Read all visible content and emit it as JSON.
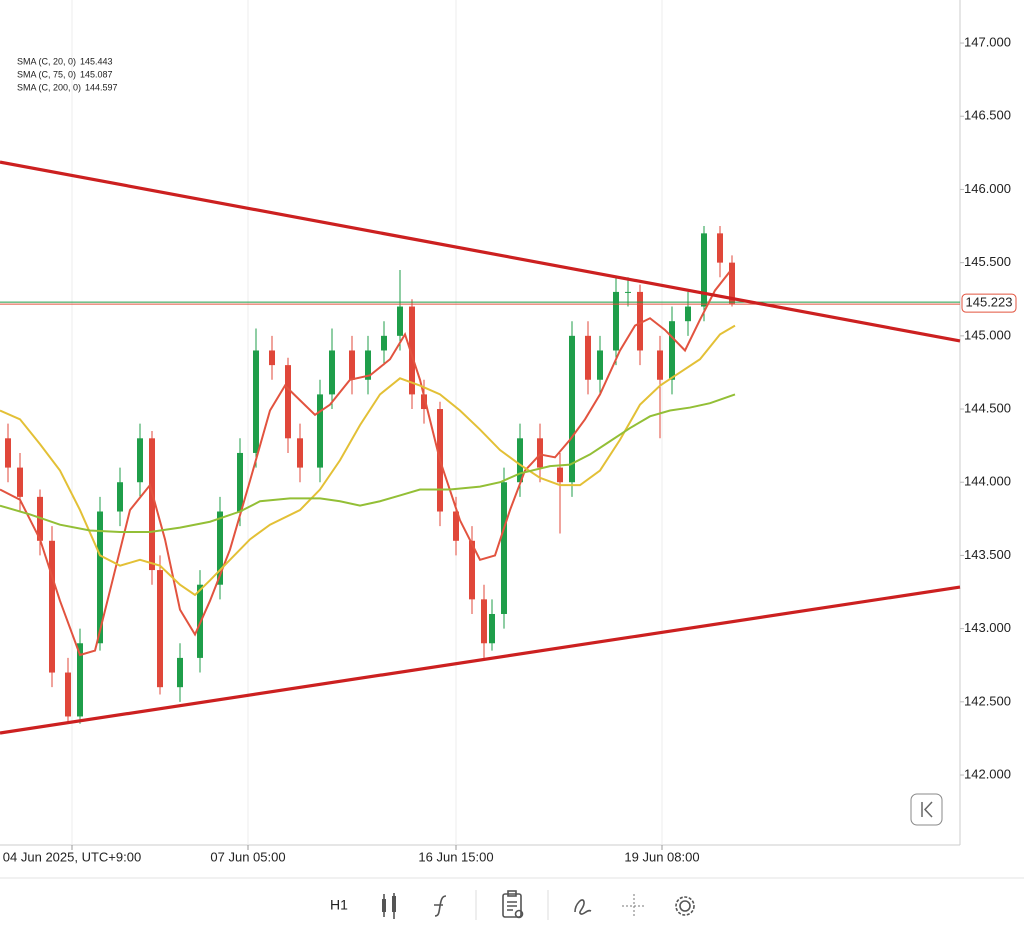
{
  "chart_data": {
    "type": "candlestick",
    "ylim": [
      141.522,
      147.294
    ],
    "yticks": [
      {
        "value": 147,
        "label": "147.000"
      },
      {
        "value": 146.5,
        "label": "146.500"
      },
      {
        "value": 146,
        "label": "146.000"
      },
      {
        "value": 145.5,
        "label": "145.500"
      },
      {
        "value": 145,
        "label": "145.000"
      },
      {
        "value": 144.5,
        "label": "144.500"
      },
      {
        "value": 144,
        "label": "144.000"
      },
      {
        "value": 143.5,
        "label": "143.500"
      },
      {
        "value": 143,
        "label": "143.000"
      },
      {
        "value": 142.5,
        "label": "142.500"
      },
      {
        "value": 142,
        "label": "142.000"
      }
    ],
    "xlim": [
      0,
      240
    ],
    "xticks": [
      {
        "value": 18,
        "label": "04 Jun 2025, UTC+9:00"
      },
      {
        "value": 62,
        "label": "07 Jun 05:00"
      },
      {
        "value": 114,
        "label": "16 Jun 15:00"
      },
      {
        "value": 165.5,
        "label": "19 Jun 08:00"
      }
    ],
    "candles": {
      "up_color": "#1f9e4a",
      "down_color": "#e0473a",
      "x": [
        2,
        5,
        10,
        13,
        17,
        20,
        25,
        30,
        35,
        38,
        40,
        45,
        50,
        55,
        60,
        64,
        68,
        72,
        75,
        80,
        83,
        88,
        92,
        96,
        100,
        103,
        106,
        110,
        114,
        118,
        121,
        123,
        126,
        130,
        135,
        140,
        143,
        147,
        150,
        154,
        157,
        160,
        165,
        168,
        172,
        176,
        180,
        183
      ],
      "open": [
        144.3,
        144.1,
        143.9,
        143.6,
        142.7,
        142.4,
        142.9,
        143.8,
        144.0,
        144.3,
        143.4,
        142.6,
        142.8,
        143.3,
        143.8,
        144.2,
        144.9,
        144.8,
        144.3,
        144.1,
        144.6,
        144.9,
        144.7,
        144.9,
        145.0,
        145.2,
        144.6,
        144.5,
        143.8,
        143.6,
        143.2,
        142.9,
        143.1,
        144.0,
        144.3,
        144.1,
        144.0,
        145.0,
        144.7,
        144.9,
        145.3,
        145.3,
        144.9,
        144.7,
        145.1,
        145.2,
        145.7,
        145.5
      ],
      "high": [
        144.4,
        144.2,
        143.95,
        143.7,
        142.8,
        143.0,
        143.9,
        144.1,
        144.4,
        144.35,
        143.5,
        142.9,
        143.4,
        143.9,
        144.3,
        145.05,
        145.0,
        144.85,
        144.4,
        144.7,
        145.05,
        145.0,
        145.0,
        145.1,
        145.45,
        145.25,
        144.7,
        144.55,
        143.9,
        143.7,
        143.3,
        143.2,
        144.1,
        144.4,
        144.4,
        144.2,
        145.1,
        145.1,
        145.0,
        145.4,
        145.4,
        145.35,
        145.0,
        145.2,
        145.3,
        145.75,
        145.75,
        145.55
      ],
      "low": [
        144.0,
        143.8,
        143.5,
        142.6,
        142.35,
        142.35,
        142.85,
        143.7,
        143.9,
        143.3,
        142.55,
        142.5,
        142.7,
        143.2,
        143.7,
        144.1,
        144.7,
        144.2,
        144.0,
        144.0,
        144.5,
        144.6,
        144.6,
        144.8,
        144.9,
        144.5,
        144.4,
        143.7,
        143.5,
        143.1,
        142.8,
        142.85,
        143.0,
        143.9,
        144.0,
        143.65,
        143.9,
        144.6,
        144.6,
        144.8,
        145.2,
        144.8,
        144.3,
        144.6,
        145.0,
        145.1,
        145.4,
        145.2
      ],
      "close": [
        144.1,
        143.9,
        143.6,
        142.7,
        142.4,
        142.9,
        143.8,
        144.0,
        144.3,
        143.4,
        142.6,
        142.8,
        143.3,
        143.8,
        144.2,
        144.9,
        144.8,
        144.3,
        144.1,
        144.6,
        144.9,
        144.7,
        144.9,
        145.0,
        145.2,
        144.6,
        144.5,
        143.8,
        143.6,
        143.2,
        142.9,
        143.1,
        144.0,
        144.3,
        144.1,
        144.0,
        145.0,
        144.7,
        144.9,
        145.3,
        145.3,
        144.9,
        144.7,
        145.1,
        145.2,
        145.7,
        145.5,
        145.22
      ]
    },
    "series": [
      {
        "name": "SMA (C, 20, 0)",
        "last_value": 145.443,
        "color": "#e2533f",
        "x": [
          0,
          5,
          10,
          15,
          20,
          23.75,
          27.5,
          32.5,
          37.5,
          41.25,
          45,
          48.75,
          52.5,
          57.5,
          62.5,
          67.5,
          71.25,
          75,
          78.75,
          82.5,
          87.5,
          92.5,
          97.5,
          101.25,
          105,
          110,
          115,
          120,
          123.75,
          127.5,
          131.25,
          135,
          138.75,
          142.5,
          146.25,
          150,
          155,
          158.75,
          162.5,
          166.25,
          171.25,
          175,
          178.75,
          182.5
        ],
        "values": [
          143.95,
          143.88,
          143.61,
          143.19,
          142.82,
          142.85,
          143.26,
          143.81,
          143.98,
          143.61,
          143.13,
          142.96,
          143.19,
          143.54,
          144.01,
          144.49,
          144.66,
          144.56,
          144.46,
          144.53,
          144.7,
          144.73,
          144.84,
          145.01,
          144.7,
          144.15,
          143.74,
          143.47,
          143.5,
          143.81,
          144.08,
          144.19,
          144.17,
          144.29,
          144.43,
          144.6,
          144.9,
          145.07,
          145.12,
          145.04,
          144.9,
          145.11,
          145.31,
          145.44
        ]
      },
      {
        "name": "SMA (C, 75, 0)",
        "last_value": 145.087,
        "color": "#e3c036",
        "x": [
          0,
          5,
          10,
          15,
          20,
          25,
          30,
          35,
          40,
          45,
          48.75,
          52.5,
          57.5,
          62.5,
          67.5,
          75,
          80,
          85,
          90,
          95,
          100,
          105,
          110,
          115,
          120,
          125,
          130,
          135,
          140,
          145,
          150,
          155,
          160,
          165,
          170,
          175,
          180,
          183.75
        ],
        "values": [
          144.49,
          144.43,
          144.26,
          144.08,
          143.81,
          143.5,
          143.43,
          143.47,
          143.43,
          143.3,
          143.23,
          143.33,
          143.47,
          143.61,
          143.71,
          143.81,
          143.95,
          144.15,
          144.39,
          144.6,
          144.71,
          144.66,
          144.6,
          144.49,
          144.36,
          144.22,
          144.12,
          144.03,
          143.98,
          143.98,
          144.08,
          144.29,
          144.53,
          144.66,
          144.75,
          144.84,
          145.01,
          145.07
        ]
      },
      {
        "name": "SMA (C, 200, 0)",
        "last_value": 144.597,
        "color": "#93bf36",
        "x": [
          0,
          7.5,
          15,
          22.5,
          30,
          37.5,
          45,
          52.5,
          60,
          65,
          72.5,
          80,
          85,
          90,
          95,
          100,
          105,
          112.5,
          120,
          125,
          130,
          137.5,
          142.5,
          147.5,
          152.5,
          157.5,
          162.5,
          167.5,
          172.5,
          177.5,
          183.75
        ],
        "values": [
          143.84,
          143.78,
          143.71,
          143.67,
          143.66,
          143.66,
          143.69,
          143.73,
          143.8,
          143.87,
          143.89,
          143.89,
          143.87,
          143.84,
          143.87,
          143.91,
          143.95,
          143.95,
          143.97,
          144.0,
          144.06,
          144.11,
          144.12,
          144.19,
          144.28,
          144.37,
          144.45,
          144.49,
          144.51,
          144.54,
          144.6
        ]
      }
    ],
    "trendlines": [
      {
        "color": "#cc2020",
        "x": [
          0,
          240
        ],
        "values": [
          146.187,
          144.965
        ]
      },
      {
        "color": "#cc2020",
        "x": [
          0,
          240
        ],
        "values": [
          142.287,
          143.284
        ]
      }
    ],
    "last_price": 145.223,
    "last_price_color": "#e2533f"
  },
  "toolbar": {
    "timeframe": "H1"
  }
}
